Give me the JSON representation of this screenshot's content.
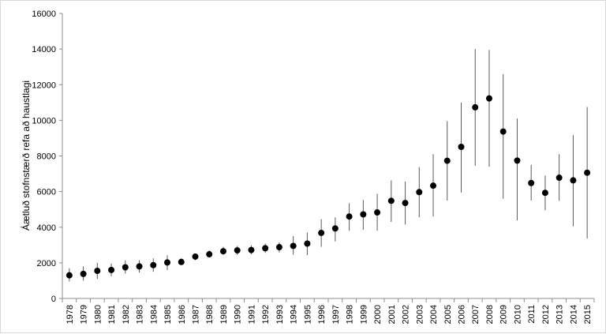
{
  "chart_data": {
    "type": "scatter",
    "title": "",
    "xlabel": "",
    "ylabel": "Áætluð stofnstærð refa að haustlagi",
    "ylim": [
      0,
      16000
    ],
    "yticks": [
      0,
      2000,
      4000,
      6000,
      8000,
      10000,
      12000,
      14000,
      16000
    ],
    "grid": false,
    "error_bars": true,
    "marker_color": "#000000",
    "categories": [
      "1978",
      "1979",
      "1980",
      "1981",
      "1982",
      "1983",
      "1984",
      "1985",
      "1986",
      "1987",
      "1988",
      "1989",
      "1990",
      "1991",
      "1992",
      "1993",
      "1994",
      "1995",
      "1996",
      "1997",
      "1998",
      "1999",
      "2000",
      "2001",
      "2002",
      "2003",
      "2004",
      "2005",
      "2006",
      "2007",
      "2008",
      "2009",
      "2010",
      "2011",
      "2012",
      "2013",
      "2014",
      "2015"
    ],
    "values": [
      1300,
      1380,
      1550,
      1600,
      1750,
      1800,
      1870,
      2020,
      2050,
      2350,
      2480,
      2650,
      2700,
      2720,
      2820,
      2880,
      2950,
      3080,
      3680,
      3930,
      4600,
      4720,
      4830,
      5480,
      5360,
      5970,
      6330,
      7730,
      8510,
      10730,
      11230,
      9370,
      7740,
      6480,
      5930,
      6780,
      6630,
      7060
    ],
    "lower": [
      950,
      1000,
      1100,
      1250,
      1400,
      1450,
      1500,
      1600,
      1900,
      2150,
      2300,
      2450,
      2450,
      2480,
      2560,
      2580,
      2450,
      2430,
      2900,
      3200,
      3800,
      3850,
      3800,
      4300,
      4150,
      4560,
      4600,
      5500,
      5950,
      7450,
      7400,
      5600,
      4380,
      5500,
      4950,
      5480,
      4050,
      3370
    ],
    "upper": [
      1700,
      1800,
      2000,
      1960,
      2150,
      2150,
      2250,
      2420,
      2250,
      2500,
      2700,
      2900,
      2950,
      2980,
      3080,
      3150,
      3500,
      3700,
      4450,
      4550,
      5350,
      5530,
      5880,
      6630,
      6560,
      7380,
      8100,
      9960,
      11000,
      14000,
      13950,
      12600,
      10100,
      7500,
      6900,
      8100,
      9170,
      10750
    ]
  }
}
